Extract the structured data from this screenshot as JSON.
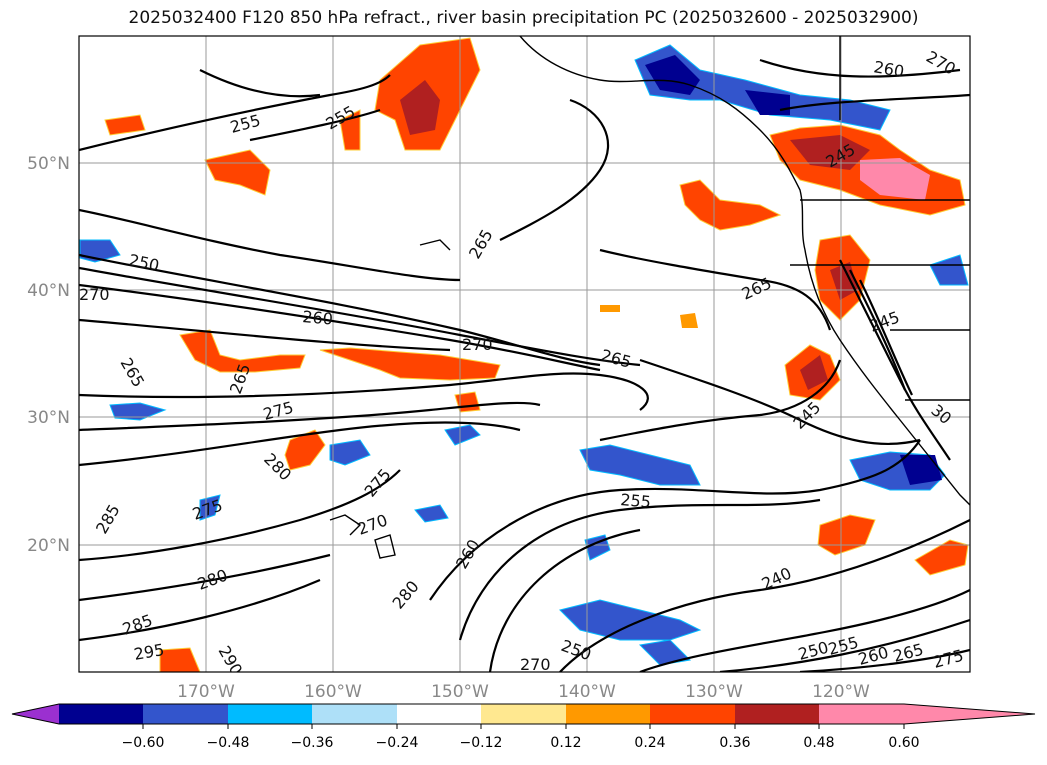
{
  "title": "2025032400 F120 850 hPa refract., river basin precipitation PC (2025032600 - 2025032900)",
  "lat_labels": [
    "50°N",
    "40°N",
    "30°N",
    "20°N"
  ],
  "lon_labels": [
    "170°W",
    "160°W",
    "150°W",
    "140°W",
    "130°W",
    "120°W"
  ],
  "colorbar": {
    "ticks": [
      "−0.60",
      "−0.48",
      "−0.36",
      "−0.24",
      "−0.12",
      "0.12",
      "0.24",
      "0.36",
      "0.48",
      "0.60"
    ],
    "colors": [
      "#9b30d0",
      "#000090",
      "#3355cc",
      "#00bbff",
      "#aee0f8",
      "#ffffff",
      "#ffe890",
      "#ff9900",
      "#ff4400",
      "#b02020",
      "#ff88aa"
    ]
  },
  "contour_labels": [
    "250",
    "255",
    "255",
    "260",
    "265",
    "265",
    "265",
    "270",
    "270",
    "270",
    "275",
    "275",
    "275",
    "280",
    "280",
    "280",
    "285",
    "285",
    "295",
    "290",
    "265",
    "260",
    "265",
    "240",
    "245",
    "245",
    "250",
    "255",
    "250",
    "255",
    "260",
    "265",
    "270",
    "275",
    "245",
    "260",
    "270",
    "30"
  ]
}
